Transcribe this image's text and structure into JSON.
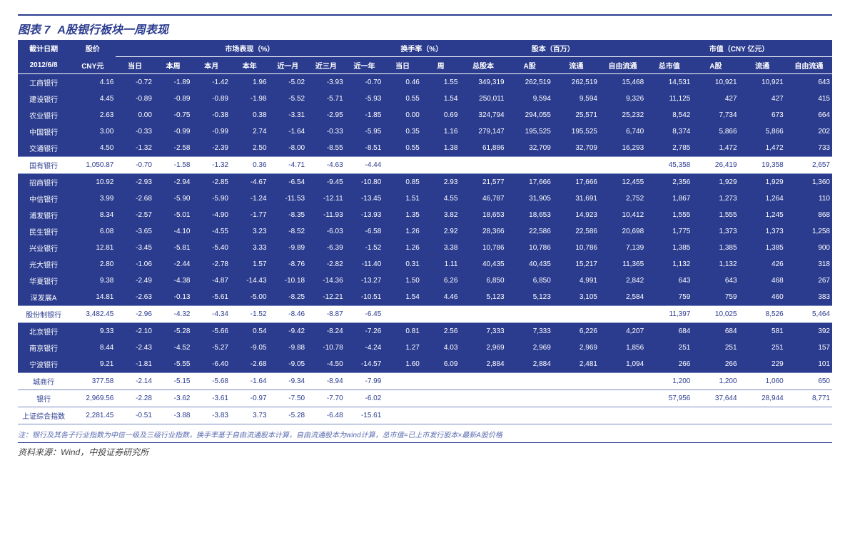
{
  "title_label": "图表 7",
  "title_text": "A股银行板块一周表现",
  "header": {
    "date_label": "截计日期",
    "price_label": "股价",
    "date_value": "2012/6/8",
    "price_unit": "CNY元",
    "group_perf": "市场表现（%）",
    "group_turn": "换手率（%）",
    "group_shares": "股本（百万）",
    "group_mv": "市值（CNY 亿元）",
    "perf_cols": [
      "当日",
      "本周",
      "本月",
      "本年",
      "近一月",
      "近三月",
      "近一年"
    ],
    "turn_cols": [
      "当日",
      "周"
    ],
    "share_cols": [
      "总股本",
      "A股",
      "流通",
      "自由流通"
    ],
    "mv_cols": [
      "总市值",
      "A股",
      "流通",
      "自由流通"
    ]
  },
  "rows": [
    {
      "type": "row",
      "name": "工商银行",
      "price": "4.16",
      "perf": [
        "-0.72",
        "-1.89",
        "-1.42",
        "1.96",
        "-5.02",
        "-3.93",
        "-0.70"
      ],
      "turn": [
        "0.46",
        "1.55"
      ],
      "shares": [
        "349,319",
        "262,519",
        "262,519",
        "15,468"
      ],
      "mv": [
        "14,531",
        "10,921",
        "10,921",
        "643"
      ]
    },
    {
      "type": "row",
      "name": "建设银行",
      "price": "4.45",
      "perf": [
        "-0.89",
        "-0.89",
        "-0.89",
        "-1.98",
        "-5.52",
        "-5.71",
        "-5.93"
      ],
      "turn": [
        "0.55",
        "1.54"
      ],
      "shares": [
        "250,011",
        "9,594",
        "9,594",
        "9,326"
      ],
      "mv": [
        "11,125",
        "427",
        "427",
        "415"
      ]
    },
    {
      "type": "row",
      "name": "农业银行",
      "price": "2.63",
      "perf": [
        "0.00",
        "-0.75",
        "-0.38",
        "0.38",
        "-3.31",
        "-2.95",
        "-1.85"
      ],
      "turn": [
        "0.00",
        "0.69"
      ],
      "shares": [
        "324,794",
        "294,055",
        "25,571",
        "25,232"
      ],
      "mv": [
        "8,542",
        "7,734",
        "673",
        "664"
      ]
    },
    {
      "type": "row",
      "name": "中国银行",
      "price": "3.00",
      "perf": [
        "-0.33",
        "-0.99",
        "-0.99",
        "2.74",
        "-1.64",
        "-0.33",
        "-5.95"
      ],
      "turn": [
        "0.35",
        "1.16"
      ],
      "shares": [
        "279,147",
        "195,525",
        "195,525",
        "6,740"
      ],
      "mv": [
        "8,374",
        "5,866",
        "5,866",
        "202"
      ]
    },
    {
      "type": "row",
      "name": "交通银行",
      "price": "4.50",
      "perf": [
        "-1.32",
        "-2.58",
        "-2.39",
        "2.50",
        "-8.00",
        "-8.55",
        "-8.51"
      ],
      "turn": [
        "0.55",
        "1.38"
      ],
      "shares": [
        "61,886",
        "32,709",
        "32,709",
        "16,293"
      ],
      "mv": [
        "2,785",
        "1,472",
        "1,472",
        "733"
      ]
    },
    {
      "type": "subtotal",
      "name": "国有银行",
      "price": "1,050.87",
      "perf": [
        "-0.70",
        "-1.58",
        "-1.32",
        "0.36",
        "-4.71",
        "-4.63",
        "-4.44"
      ],
      "turn": [
        "",
        ""
      ],
      "shares": [
        "",
        "",
        "",
        ""
      ],
      "mv": [
        "45,358",
        "26,419",
        "19,358",
        "2,657"
      ]
    },
    {
      "type": "row",
      "name": "招商银行",
      "price": "10.92",
      "perf": [
        "-2.93",
        "-2.94",
        "-2.85",
        "-4.67",
        "-6.54",
        "-9.45",
        "-10.80"
      ],
      "turn": [
        "0.85",
        "2.93"
      ],
      "shares": [
        "21,577",
        "17,666",
        "17,666",
        "12,455"
      ],
      "mv": [
        "2,356",
        "1,929",
        "1,929",
        "1,360"
      ]
    },
    {
      "type": "row",
      "name": "中信银行",
      "price": "3.99",
      "perf": [
        "-2.68",
        "-5.90",
        "-5.90",
        "-1.24",
        "-11.53",
        "-12.11",
        "-13.45"
      ],
      "turn": [
        "1.51",
        "4.55"
      ],
      "shares": [
        "46,787",
        "31,905",
        "31,691",
        "2,752"
      ],
      "mv": [
        "1,867",
        "1,273",
        "1,264",
        "110"
      ]
    },
    {
      "type": "row",
      "name": "浦发银行",
      "price": "8.34",
      "perf": [
        "-2.57",
        "-5.01",
        "-4.90",
        "-1.77",
        "-8.35",
        "-11.93",
        "-13.93"
      ],
      "turn": [
        "1.35",
        "3.82"
      ],
      "shares": [
        "18,653",
        "18,653",
        "14,923",
        "10,412"
      ],
      "mv": [
        "1,555",
        "1,555",
        "1,245",
        "868"
      ]
    },
    {
      "type": "row",
      "name": "民生银行",
      "price": "6.08",
      "perf": [
        "-3.65",
        "-4.10",
        "-4.55",
        "3.23",
        "-8.52",
        "-6.03",
        "-6.58"
      ],
      "turn": [
        "1.26",
        "2.92"
      ],
      "shares": [
        "28,366",
        "22,586",
        "22,586",
        "20,698"
      ],
      "mv": [
        "1,775",
        "1,373",
        "1,373",
        "1,258"
      ]
    },
    {
      "type": "row",
      "name": "兴业银行",
      "price": "12.81",
      "perf": [
        "-3.45",
        "-5.81",
        "-5.40",
        "3.33",
        "-9.89",
        "-6.39",
        "-1.52"
      ],
      "turn": [
        "1.26",
        "3.38"
      ],
      "shares": [
        "10,786",
        "10,786",
        "10,786",
        "7,139"
      ],
      "mv": [
        "1,385",
        "1,385",
        "1,385",
        "900"
      ]
    },
    {
      "type": "row",
      "name": "光大银行",
      "price": "2.80",
      "perf": [
        "-1.06",
        "-2.44",
        "-2.78",
        "1.57",
        "-8.76",
        "-2.82",
        "-11.40"
      ],
      "turn": [
        "0.31",
        "1.11"
      ],
      "shares": [
        "40,435",
        "40,435",
        "15,217",
        "11,365"
      ],
      "mv": [
        "1,132",
        "1,132",
        "426",
        "318"
      ]
    },
    {
      "type": "row",
      "name": "华夏银行",
      "price": "9.38",
      "perf": [
        "-2.49",
        "-4.38",
        "-4.87",
        "-14.43",
        "-10.18",
        "-14.36",
        "-13.27"
      ],
      "turn": [
        "1.50",
        "6.26"
      ],
      "shares": [
        "6,850",
        "6,850",
        "4,991",
        "2,842"
      ],
      "mv": [
        "643",
        "643",
        "468",
        "267"
      ]
    },
    {
      "type": "row",
      "name": "深发展A",
      "price": "14.81",
      "perf": [
        "-2.63",
        "-0.13",
        "-5.61",
        "-5.00",
        "-8.25",
        "-12.21",
        "-10.51"
      ],
      "turn": [
        "1.54",
        "4.46"
      ],
      "shares": [
        "5,123",
        "5,123",
        "3,105",
        "2,584"
      ],
      "mv": [
        "759",
        "759",
        "460",
        "383"
      ]
    },
    {
      "type": "subtotal",
      "name": "股份制银行",
      "price": "3,482.45",
      "perf": [
        "-2.96",
        "-4.32",
        "-4.34",
        "-1.52",
        "-8.46",
        "-8.87",
        "-6.45"
      ],
      "turn": [
        "",
        ""
      ],
      "shares": [
        "",
        "",
        "",
        ""
      ],
      "mv": [
        "11,397",
        "10,025",
        "8,526",
        "5,464"
      ]
    },
    {
      "type": "row",
      "name": "北京银行",
      "price": "9.33",
      "perf": [
        "-2.10",
        "-5.28",
        "-5.66",
        "0.54",
        "-9.42",
        "-8.24",
        "-7.26"
      ],
      "turn": [
        "0.81",
        "2.56"
      ],
      "shares": [
        "7,333",
        "7,333",
        "6,226",
        "4,207"
      ],
      "mv": [
        "684",
        "684",
        "581",
        "392"
      ]
    },
    {
      "type": "row",
      "name": "南京银行",
      "price": "8.44",
      "perf": [
        "-2.43",
        "-4.52",
        "-5.27",
        "-9.05",
        "-9.88",
        "-10.78",
        "-4.24"
      ],
      "turn": [
        "1.27",
        "4.03"
      ],
      "shares": [
        "2,969",
        "2,969",
        "2,969",
        "1,856"
      ],
      "mv": [
        "251",
        "251",
        "251",
        "157"
      ]
    },
    {
      "type": "row",
      "name": "宁波银行",
      "price": "9.21",
      "perf": [
        "-1.81",
        "-5.55",
        "-6.40",
        "-2.68",
        "-9.05",
        "-4.50",
        "-14.57"
      ],
      "turn": [
        "1.60",
        "6.09"
      ],
      "shares": [
        "2,884",
        "2,884",
        "2,481",
        "1,094"
      ],
      "mv": [
        "266",
        "266",
        "229",
        "101"
      ]
    },
    {
      "type": "subtotal",
      "name": "城商行",
      "price": "377.58",
      "perf": [
        "-2.14",
        "-5.15",
        "-5.68",
        "-1.64",
        "-9.34",
        "-8.94",
        "-7.99"
      ],
      "turn": [
        "",
        ""
      ],
      "shares": [
        "",
        "",
        "",
        ""
      ],
      "mv": [
        "1,200",
        "1,200",
        "1,060",
        "650"
      ]
    },
    {
      "type": "subtotal",
      "name": "银行",
      "price": "2,969.56",
      "perf": [
        "-2.28",
        "-3.62",
        "-3.61",
        "-0.97",
        "-7.50",
        "-7.70",
        "-6.02"
      ],
      "turn": [
        "",
        ""
      ],
      "shares": [
        "",
        "",
        "",
        ""
      ],
      "mv": [
        "57,956",
        "37,644",
        "28,944",
        "8,771"
      ]
    },
    {
      "type": "subtotal",
      "name": "上证综合指数",
      "price": "2,281.45",
      "perf": [
        "-0.51",
        "-3.88",
        "-3.83",
        "3.73",
        "-5.28",
        "-6.48",
        "-15.61"
      ],
      "turn": [
        "",
        ""
      ],
      "shares": [
        "",
        "",
        "",
        ""
      ],
      "mv": [
        "",
        "",
        "",
        ""
      ]
    }
  ],
  "note": "注：银行及其各子行业指数为中信一级及三级行业指数，换手率基于自由流通股本计算，自由流通股本为wind计算，总市值=已上市发行股本×最新A股价格",
  "source": "资料来源：Wind，中投证券研究所",
  "colors": {
    "brand": "#2b3c8f",
    "band": "#ffffff",
    "grid": "#7a89c0"
  }
}
